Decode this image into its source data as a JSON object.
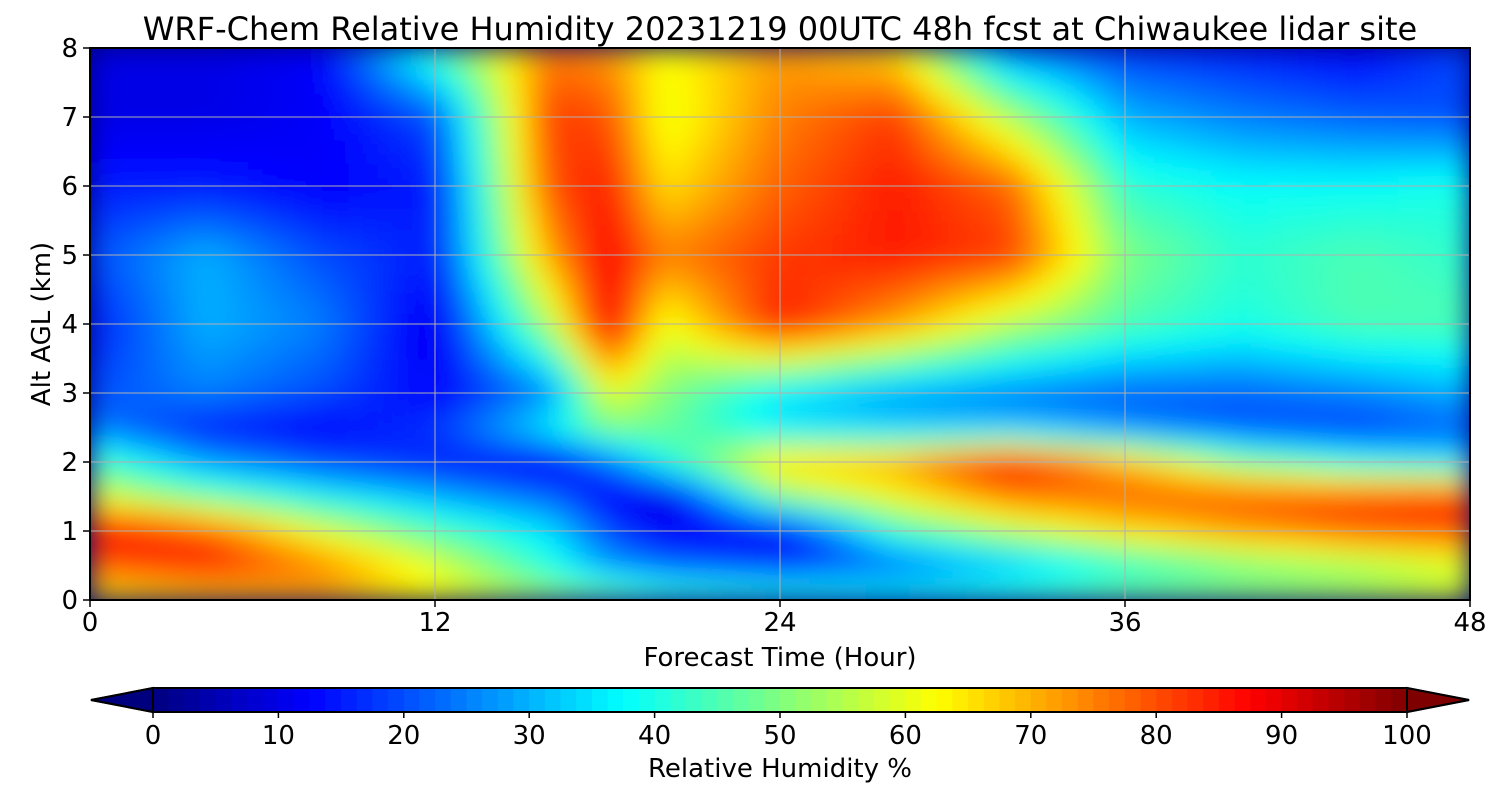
{
  "chart_data": {
    "type": "heatmap",
    "title": "WRF-Chem Relative Humidity 20231219 00UTC 48h fcst at Chiwaukee lidar site",
    "xlabel": "Forecast Time (Hour)",
    "ylabel": "Alt AGL (km)",
    "xlim": [
      0,
      48
    ],
    "ylim": [
      0,
      8
    ],
    "x_ticks": [
      "0",
      "12",
      "24",
      "36",
      "48"
    ],
    "y_ticks": [
      "0",
      "1",
      "2",
      "3",
      "4",
      "5",
      "6",
      "7",
      "8"
    ],
    "grid": true,
    "x": [
      0,
      4,
      8,
      12,
      16,
      18,
      20,
      24,
      28,
      32,
      36,
      40,
      44,
      48
    ],
    "y": [
      0,
      0.5,
      1,
      1.5,
      2,
      2.5,
      3,
      4,
      5,
      6,
      7,
      8
    ],
    "z": [
      [
        62,
        65,
        70,
        62,
        55,
        52,
        48,
        45,
        42,
        45,
        50,
        52,
        55,
        60
      ],
      [
        78,
        84,
        75,
        60,
        40,
        28,
        22,
        18,
        22,
        30,
        40,
        48,
        52,
        58
      ],
      [
        90,
        80,
        60,
        45,
        35,
        20,
        12,
        10,
        42,
        55,
        65,
        72,
        78,
        80
      ],
      [
        60,
        48,
        38,
        30,
        22,
        12,
        8,
        50,
        62,
        75,
        78,
        80,
        82,
        85
      ],
      [
        45,
        28,
        20,
        15,
        10,
        22,
        40,
        68,
        72,
        88,
        70,
        50,
        40,
        35
      ],
      [
        25,
        15,
        12,
        18,
        38,
        50,
        48,
        35,
        32,
        30,
        25,
        20,
        18,
        22
      ],
      [
        20,
        25,
        20,
        12,
        25,
        60,
        50,
        35,
        28,
        25,
        22,
        22,
        25,
        30
      ],
      [
        15,
        30,
        25,
        10,
        55,
        90,
        60,
        85,
        72,
        55,
        45,
        40,
        45,
        45
      ],
      [
        20,
        30,
        20,
        15,
        72,
        88,
        75,
        82,
        85,
        82,
        50,
        42,
        45,
        42
      ],
      [
        15,
        15,
        12,
        15,
        80,
        85,
        65,
        78,
        85,
        78,
        42,
        38,
        38,
        40
      ],
      [
        10,
        10,
        12,
        20,
        82,
        80,
        60,
        75,
        82,
        55,
        30,
        25,
        22,
        20
      ],
      [
        10,
        10,
        12,
        45,
        75,
        72,
        62,
        72,
        65,
        25,
        18,
        15,
        12,
        20
      ]
    ],
    "colorbar": {
      "label": "Relative Humidity %",
      "range": [
        0,
        100
      ],
      "ticks": [
        "0",
        "10",
        "20",
        "30",
        "40",
        "50",
        "60",
        "70",
        "80",
        "90",
        "100"
      ],
      "colormap": "jet",
      "extend": "both",
      "over_color": "#7f0000",
      "under_color": "#00007f"
    }
  }
}
